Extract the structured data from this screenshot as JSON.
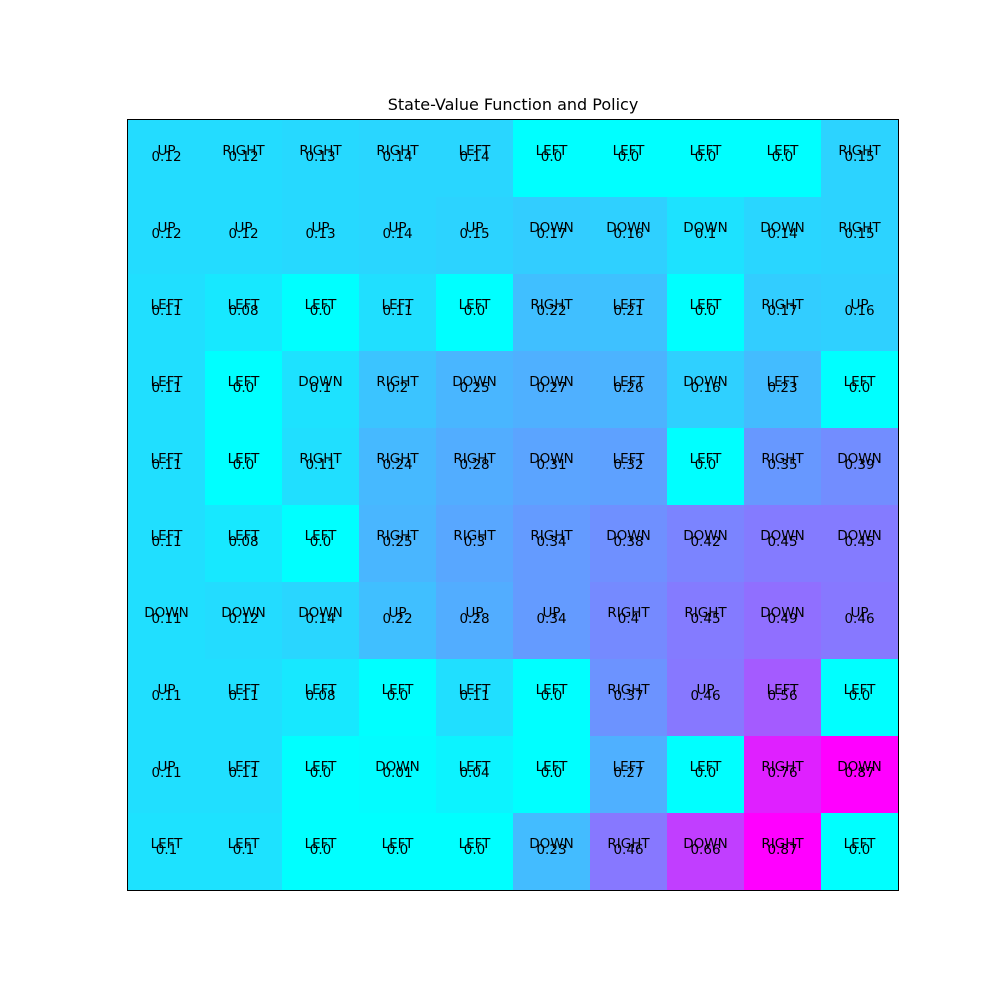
{
  "chart_data": {
    "type": "heatmap",
    "title": "State-Value Function and Policy",
    "rows": 10,
    "cols": 10,
    "colormap": "cool",
    "vmin": 0.0,
    "vmax": 0.87,
    "cells": [
      [
        {
          "action": "UP",
          "value": "0.12"
        },
        {
          "action": "RIGHT",
          "value": "0.12"
        },
        {
          "action": "RIGHT",
          "value": "0.13"
        },
        {
          "action": "RIGHT",
          "value": "0.14"
        },
        {
          "action": "LEFT",
          "value": "0.14"
        },
        {
          "action": "LEFT",
          "value": "0.0"
        },
        {
          "action": "LEFT",
          "value": "0.0"
        },
        {
          "action": "LEFT",
          "value": "0.0"
        },
        {
          "action": "LEFT",
          "value": "0.0"
        },
        {
          "action": "RIGHT",
          "value": "0.15"
        }
      ],
      [
        {
          "action": "UP",
          "value": "0.12"
        },
        {
          "action": "UP",
          "value": "0.12"
        },
        {
          "action": "UP",
          "value": "0.13"
        },
        {
          "action": "UP",
          "value": "0.14"
        },
        {
          "action": "UP",
          "value": "0.15"
        },
        {
          "action": "DOWN",
          "value": "0.17"
        },
        {
          "action": "DOWN",
          "value": "0.16"
        },
        {
          "action": "DOWN",
          "value": "0.1"
        },
        {
          "action": "DOWN",
          "value": "0.14"
        },
        {
          "action": "RIGHT",
          "value": "0.15"
        }
      ],
      [
        {
          "action": "LEFT",
          "value": "0.11"
        },
        {
          "action": "LEFT",
          "value": "0.08"
        },
        {
          "action": "LEFT",
          "value": "0.0"
        },
        {
          "action": "LEFT",
          "value": "0.11"
        },
        {
          "action": "LEFT",
          "value": "0.0"
        },
        {
          "action": "RIGHT",
          "value": "0.22"
        },
        {
          "action": "LEFT",
          "value": "0.21"
        },
        {
          "action": "LEFT",
          "value": "0.0"
        },
        {
          "action": "RIGHT",
          "value": "0.17"
        },
        {
          "action": "UP",
          "value": "0.16"
        }
      ],
      [
        {
          "action": "LEFT",
          "value": "0.11"
        },
        {
          "action": "LEFT",
          "value": "0.0"
        },
        {
          "action": "DOWN",
          "value": "0.1"
        },
        {
          "action": "RIGHT",
          "value": "0.2"
        },
        {
          "action": "DOWN",
          "value": "0.25"
        },
        {
          "action": "DOWN",
          "value": "0.27"
        },
        {
          "action": "LEFT",
          "value": "0.26"
        },
        {
          "action": "DOWN",
          "value": "0.16"
        },
        {
          "action": "LEFT",
          "value": "0.23"
        },
        {
          "action": "LEFT",
          "value": "0.0"
        }
      ],
      [
        {
          "action": "LEFT",
          "value": "0.11"
        },
        {
          "action": "LEFT",
          "value": "0.0"
        },
        {
          "action": "RIGHT",
          "value": "0.11"
        },
        {
          "action": "RIGHT",
          "value": "0.24"
        },
        {
          "action": "RIGHT",
          "value": "0.28"
        },
        {
          "action": "DOWN",
          "value": "0.31"
        },
        {
          "action": "LEFT",
          "value": "0.32"
        },
        {
          "action": "LEFT",
          "value": "0.0"
        },
        {
          "action": "RIGHT",
          "value": "0.35"
        },
        {
          "action": "DOWN",
          "value": "0.39"
        }
      ],
      [
        {
          "action": "LEFT",
          "value": "0.11"
        },
        {
          "action": "LEFT",
          "value": "0.08"
        },
        {
          "action": "LEFT",
          "value": "0.0"
        },
        {
          "action": "RIGHT",
          "value": "0.25"
        },
        {
          "action": "RIGHT",
          "value": "0.3"
        },
        {
          "action": "RIGHT",
          "value": "0.34"
        },
        {
          "action": "DOWN",
          "value": "0.38"
        },
        {
          "action": "DOWN",
          "value": "0.42"
        },
        {
          "action": "DOWN",
          "value": "0.45"
        },
        {
          "action": "DOWN",
          "value": "0.45"
        }
      ],
      [
        {
          "action": "DOWN",
          "value": "0.11"
        },
        {
          "action": "DOWN",
          "value": "0.12"
        },
        {
          "action": "DOWN",
          "value": "0.14"
        },
        {
          "action": "UP",
          "value": "0.22"
        },
        {
          "action": "UP",
          "value": "0.28"
        },
        {
          "action": "UP",
          "value": "0.34"
        },
        {
          "action": "RIGHT",
          "value": "0.4"
        },
        {
          "action": "RIGHT",
          "value": "0.45"
        },
        {
          "action": "DOWN",
          "value": "0.49"
        },
        {
          "action": "UP",
          "value": "0.46"
        }
      ],
      [
        {
          "action": "UP",
          "value": "0.11"
        },
        {
          "action": "LEFT",
          "value": "0.11"
        },
        {
          "action": "LEFT",
          "value": "0.08"
        },
        {
          "action": "LEFT",
          "value": "0.0"
        },
        {
          "action": "LEFT",
          "value": "0.11"
        },
        {
          "action": "LEFT",
          "value": "0.0"
        },
        {
          "action": "RIGHT",
          "value": "0.37"
        },
        {
          "action": "UP",
          "value": "0.46"
        },
        {
          "action": "LEFT",
          "value": "0.56"
        },
        {
          "action": "LEFT",
          "value": "0.0"
        }
      ],
      [
        {
          "action": "UP",
          "value": "0.11"
        },
        {
          "action": "LEFT",
          "value": "0.11"
        },
        {
          "action": "LEFT",
          "value": "0.0"
        },
        {
          "action": "DOWN",
          "value": "0.01"
        },
        {
          "action": "LEFT",
          "value": "0.04"
        },
        {
          "action": "LEFT",
          "value": "0.0"
        },
        {
          "action": "LEFT",
          "value": "0.27"
        },
        {
          "action": "LEFT",
          "value": "0.0"
        },
        {
          "action": "RIGHT",
          "value": "0.76"
        },
        {
          "action": "DOWN",
          "value": "0.87"
        }
      ],
      [
        {
          "action": "LEFT",
          "value": "0.1"
        },
        {
          "action": "LEFT",
          "value": "0.1"
        },
        {
          "action": "LEFT",
          "value": "0.0"
        },
        {
          "action": "LEFT",
          "value": "0.0"
        },
        {
          "action": "LEFT",
          "value": "0.0"
        },
        {
          "action": "DOWN",
          "value": "0.23"
        },
        {
          "action": "RIGHT",
          "value": "0.46"
        },
        {
          "action": "DOWN",
          "value": "0.66"
        },
        {
          "action": "RIGHT",
          "value": "0.87"
        },
        {
          "action": "LEFT",
          "value": "0.0"
        }
      ]
    ]
  }
}
